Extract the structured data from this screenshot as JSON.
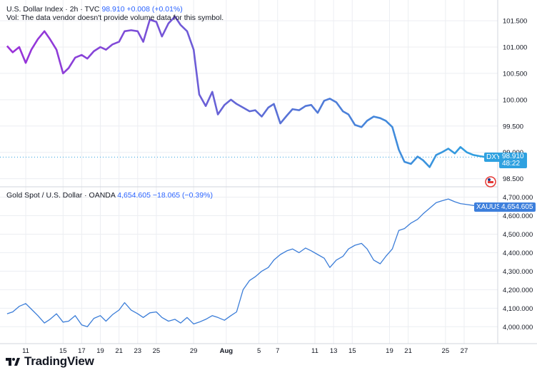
{
  "colors": {
    "dxy_start": "#9b30d9",
    "dxy_mid": "#5b6fd6",
    "dxy_end": "#2ea1e0",
    "gold": "#3b7dd8",
    "gold_tag": "#3d7fdc",
    "dxy_tag": "#2ea1e0",
    "grid": "#eceef2",
    "axis_text": "#131722"
  },
  "chart_data": [
    {
      "type": "line",
      "title": "U.S. Dollar Index · 2h · TVC",
      "last_value": "98.910",
      "change": "+0.008",
      "change_pct": "(+0.01%)",
      "note": "Vol: The data vendor doesn't provide volume data for this symbol.",
      "tag_label": "DXY",
      "tag_value": "98.910",
      "tag_countdown": "48:22",
      "yticks": [
        "101.500",
        "101.000",
        "100.500",
        "100.000",
        "99.500",
        "99.000",
        "98.500"
      ],
      "ylim": [
        98.4,
        101.65
      ],
      "series": [
        {
          "x": [
            9,
            9.6,
            10.3,
            11,
            11.6,
            12.3,
            13,
            13.6,
            14.3,
            15,
            15.6,
            16.3,
            17,
            17.6,
            18.3,
            19,
            19.6,
            20.3,
            21,
            21.6,
            22.3,
            23,
            23.6,
            24.3,
            25,
            25.6,
            26.3,
            27,
            27.6,
            28.3,
            29,
            29.6,
            30.3,
            31,
            31.6,
            32.3,
            33,
            33.6,
            34.3,
            35,
            35.6,
            36.3,
            37,
            37.6,
            38.3,
            39,
            39.6,
            40.3,
            41,
            41.6,
            42.3,
            43,
            43.6,
            44.3,
            45,
            45.6,
            46.3,
            47,
            47.6,
            48.3,
            49,
            49.6,
            50.3,
            51,
            51.6,
            52.3,
            53,
            53.6,
            54.3,
            55,
            55.6,
            56.3,
            57,
            57.6,
            58.3,
            59,
            59.6,
            60.3
          ],
          "y": [
            101.02,
            100.9,
            101.0,
            100.7,
            100.95,
            101.15,
            101.3,
            101.15,
            100.95,
            100.5,
            100.6,
            100.8,
            100.85,
            100.78,
            100.92,
            101.0,
            100.95,
            101.05,
            101.1,
            101.3,
            101.32,
            101.3,
            101.1,
            101.52,
            101.48,
            101.2,
            101.45,
            101.58,
            101.42,
            101.3,
            100.95,
            100.1,
            99.88,
            100.15,
            99.72,
            99.9,
            100.0,
            99.92,
            99.85,
            99.78,
            99.8,
            99.68,
            99.85,
            99.92,
            99.55,
            99.7,
            99.82,
            99.8,
            99.88,
            99.9,
            99.75,
            99.98,
            100.02,
            99.95,
            99.78,
            99.72,
            99.52,
            99.48,
            99.6,
            99.68,
            99.65,
            99.6,
            99.48,
            99.05,
            98.82,
            98.78,
            98.92,
            98.85,
            98.72,
            98.95,
            99.0,
            99.07,
            98.98,
            99.1,
            99.0,
            98.95,
            98.93,
            98.91
          ],
          "name": "DXY"
        }
      ]
    },
    {
      "type": "line",
      "title": "Gold Spot / U.S. Dollar · OANDA",
      "last_value": "4,654.605",
      "change": "−18.065",
      "change_pct": "(−0.39%)",
      "tag_label": "XAUUSD",
      "tag_value": "4,654.605",
      "yticks": [
        "4,700.000",
        "4,600.000",
        "4,500.000",
        "4,400.000",
        "4,300.000",
        "4,200.000",
        "4,100.000",
        "4,000.000"
      ],
      "ylim": [
        3955,
        4725
      ],
      "xticks": [
        "11",
        "15",
        "17",
        "19",
        "21",
        "23",
        "25",
        "29",
        "Aug",
        "5",
        "7",
        "11",
        "13",
        "15",
        "19",
        "21",
        "25",
        "27"
      ],
      "series": [
        {
          "x": [
            9,
            9.6,
            10.3,
            11,
            11.6,
            12.3,
            13,
            13.6,
            14.3,
            15,
            15.6,
            16.3,
            17,
            17.6,
            18.3,
            19,
            19.6,
            20.3,
            21,
            21.6,
            22.3,
            23,
            23.6,
            24.3,
            25,
            25.6,
            26.3,
            27,
            27.6,
            28.3,
            29,
            29.6,
            30.3,
            31,
            31.6,
            32.3,
            33,
            33.6,
            34.3,
            35,
            35.6,
            36.3,
            37,
            37.6,
            38.3,
            39,
            39.6,
            40.3,
            41,
            41.6,
            42.3,
            43,
            43.6,
            44.3,
            45,
            45.6,
            46.3,
            47,
            47.6,
            48.3,
            49,
            49.6,
            50.3,
            51,
            51.6,
            52.3,
            53,
            53.6,
            54.3,
            55,
            55.6,
            56.3,
            57,
            57.6,
            58.3,
            59,
            59.6,
            60.3
          ],
          "y": [
            4070,
            4080,
            4110,
            4125,
            4095,
            4060,
            4020,
            4040,
            4070,
            4025,
            4030,
            4060,
            4010,
            4000,
            4045,
            4060,
            4030,
            4065,
            4090,
            4130,
            4090,
            4070,
            4050,
            4075,
            4080,
            4050,
            4030,
            4040,
            4020,
            4050,
            4015,
            4025,
            4040,
            4060,
            4050,
            4035,
            4060,
            4080,
            4200,
            4250,
            4270,
            4300,
            4320,
            4360,
            4390,
            4410,
            4420,
            4400,
            4425,
            4410,
            4390,
            4370,
            4320,
            4360,
            4380,
            4420,
            4440,
            4450,
            4420,
            4360,
            4340,
            4380,
            4420,
            4520,
            4530,
            4560,
            4580,
            4610,
            4640,
            4670,
            4680,
            4690,
            4675,
            4665,
            4660,
            4655,
            4655,
            4654
          ],
          "name": "XAUUSD"
        }
      ]
    }
  ],
  "brand": {
    "name": "TradingView"
  }
}
